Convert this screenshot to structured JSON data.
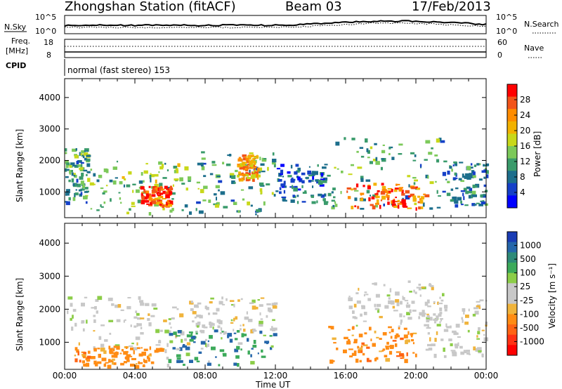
{
  "header": {
    "station": "Zhongshan Station (fitACF)",
    "beam": "Beam 03",
    "date": "17/Feb/2013"
  },
  "sky_panel": {
    "left_label": "N.Sky",
    "right_label": "N.Search",
    "left_ticks": [
      "10^5",
      "10^0"
    ],
    "right_ticks": [
      "10^5",
      "10^0"
    ]
  },
  "freq_panel": {
    "left_label_line1": "Freq.",
    "left_label_line2": "[MHz]",
    "right_label": "Nave",
    "left_ticks": [
      "18",
      "8"
    ],
    "right_ticks": [
      "60",
      "0"
    ]
  },
  "cpid": {
    "label": "CPID",
    "mode": "normal (fast stereo) 153"
  },
  "power_panel": {
    "ylabel": "Slant Range [km]",
    "yticks": [
      "4000",
      "3000",
      "2000",
      "1000"
    ],
    "colorbar_title": "Power [dB]",
    "colorbar_ticks": [
      "28",
      "24",
      "20",
      "16",
      "12",
      "8",
      "4"
    ],
    "colorbar_colors": [
      "#ff0000",
      "#f2541a",
      "#ff8c00",
      "#f3b200",
      "#c8d81a",
      "#7cc95a",
      "#3a9b6b",
      "#1c6e8c",
      "#1540c8",
      "#0000ff"
    ]
  },
  "velocity_panel": {
    "ylabel": "Slant Range [km]",
    "yticks": [
      "4000",
      "3000",
      "2000",
      "1000"
    ],
    "colorbar_title": "Velocity [m s⁻¹]",
    "colorbar_ticks": [
      "1000",
      "500",
      "100",
      "25",
      "-25",
      "-100",
      "-500",
      "-1000"
    ],
    "colorbar_colors": [
      "#1a3cb4",
      "#2566aa",
      "#2e8a78",
      "#3caa5a",
      "#8ccd48",
      "#c8c8c8",
      "#c8c8c8",
      "#f0b43c",
      "#ff8c14",
      "#ff6414",
      "#ff3214",
      "#ff0000"
    ]
  },
  "x_axis": {
    "ticks": [
      "00:00",
      "04:00",
      "08:00",
      "12:00",
      "16:00",
      "20:00",
      "00:00"
    ],
    "label": "Time UT"
  },
  "chart_data": {
    "type": "heatmap",
    "title": "Zhongshan Station (fitACF)  Beam 03  17/Feb/2013",
    "xlabel": "Time UT",
    "ylabel": "Slant Range [km]",
    "xlim": [
      "00:00",
      "24:00"
    ],
    "ylim": [
      180,
      4600
    ],
    "x_ticks": [
      "00:00",
      "04:00",
      "08:00",
      "12:00",
      "16:00",
      "20:00",
      "00:00"
    ],
    "y_ticks": [
      1000,
      2000,
      3000,
      4000
    ],
    "panels": [
      {
        "name": "Power",
        "units": "dB",
        "colorbar_range": [
          2,
          30
        ],
        "colorbar_ticks": [
          4,
          8,
          12,
          16,
          20,
          24,
          28
        ],
        "echo_regions": [
          {
            "t_start": 0.0,
            "t_end": 1.3,
            "r_low": 700,
            "r_high": 2400,
            "typical_dB": 12
          },
          {
            "t_start": 1.3,
            "t_end": 7.0,
            "r_low": 350,
            "r_high": 2000,
            "typical_dB": 14
          },
          {
            "t_start": 4.3,
            "t_end": 6.0,
            "r_low": 600,
            "r_high": 1200,
            "typical_dB": 26
          },
          {
            "t_start": 7.0,
            "t_end": 12.0,
            "r_low": 250,
            "r_high": 2300,
            "typical_dB": 12
          },
          {
            "t_start": 9.8,
            "t_end": 11.0,
            "r_low": 1400,
            "r_high": 2200,
            "typical_dB": 22
          },
          {
            "t_start": 12.0,
            "t_end": 15.0,
            "r_low": 700,
            "r_high": 1900,
            "typical_dB": 8
          },
          {
            "t_start": 15.0,
            "t_end": 21.5,
            "r_low": 400,
            "r_high": 2800,
            "typical_dB": 12
          },
          {
            "t_start": 16.0,
            "t_end": 20.5,
            "r_low": 500,
            "r_high": 1300,
            "typical_dB": 24
          },
          {
            "t_start": 21.5,
            "t_end": 24.0,
            "r_low": 600,
            "r_high": 2000,
            "typical_dB": 10
          }
        ]
      },
      {
        "name": "Velocity",
        "units": "m s^-1",
        "colorbar_ticks": [
          1000,
          500,
          100,
          25,
          -25,
          -100,
          -500,
          -1000
        ],
        "echo_regions": [
          {
            "t_start": 0.0,
            "t_end": 7.0,
            "r_low": 800,
            "r_high": 2400,
            "typical_velocity": 0
          },
          {
            "t_start": 0.5,
            "t_end": 5.5,
            "r_low": 300,
            "r_high": 900,
            "typical_velocity": -400
          },
          {
            "t_start": 5.5,
            "t_end": 12.0,
            "r_low": 300,
            "r_high": 1400,
            "typical_velocity": 120
          },
          {
            "t_start": 7.0,
            "t_end": 12.0,
            "r_low": 1300,
            "r_high": 2400,
            "typical_velocity": 0
          },
          {
            "t_start": 15.0,
            "t_end": 20.0,
            "r_low": 450,
            "r_high": 1500,
            "typical_velocity": -400
          },
          {
            "t_start": 16.0,
            "t_end": 21.5,
            "r_low": 1500,
            "r_high": 2900,
            "typical_velocity": 0
          },
          {
            "t_start": 20.5,
            "t_end": 24.0,
            "r_low": 600,
            "r_high": 2300,
            "typical_velocity": 0
          }
        ]
      }
    ]
  }
}
